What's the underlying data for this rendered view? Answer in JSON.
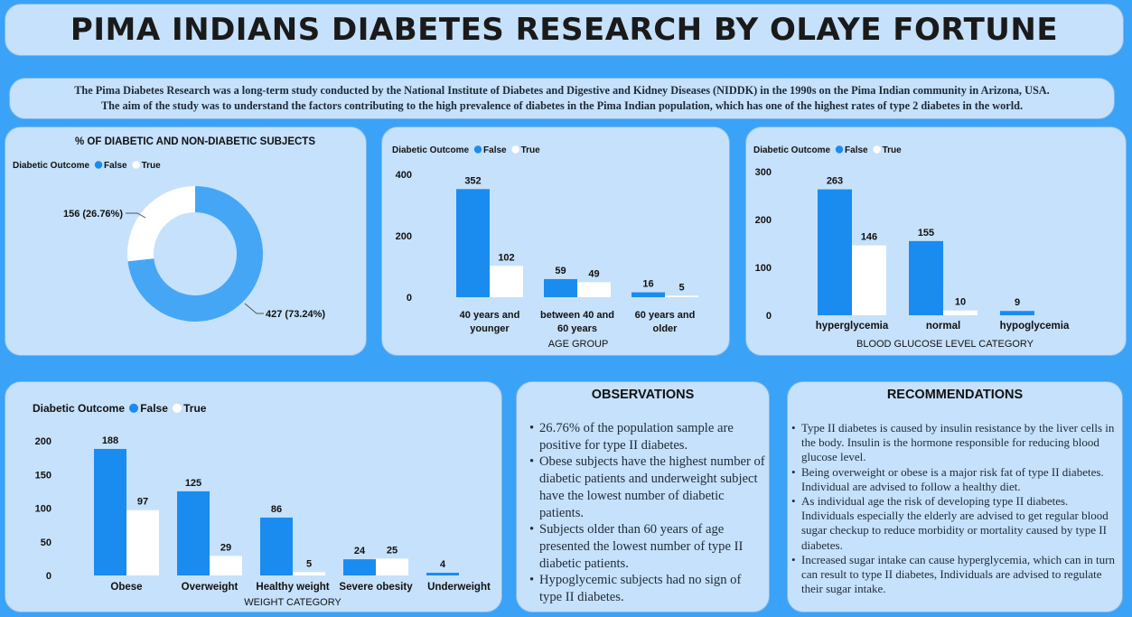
{
  "title": "PIMA INDIANS DIABETES RESEARCH BY OLAYE FORTUNE",
  "intro": [
    "The Pima Diabetes Research was a long-term study conducted by the National Institute of Diabetes and Digestive and Kidney Diseases (NIDDK) in the 1990s on the Pima Indian community in Arizona, USA.",
    "The aim of the study was to understand the factors contributing to the high prevalence of diabetes in the Pima Indian population, which has one of the highest rates of type 2 diabetes in the world."
  ],
  "colors": {
    "false": "#1a8cf0",
    "true": "#ffffff",
    "background": "#3aa2f7",
    "panel": "#c6e1fb"
  },
  "chart_data": [
    {
      "id": "donut",
      "type": "pie",
      "title": "% OF DIABETIC AND NON-DIABETIC SUBJECTS",
      "legend_title": "Diabetic Outcome",
      "legend_position": "top-left",
      "series": [
        {
          "name": "False",
          "value": 427,
          "label": "427 (73.24%)"
        },
        {
          "name": "True",
          "value": 156,
          "label": "156 (26.76%)"
        }
      ]
    },
    {
      "id": "age",
      "type": "bar",
      "title": "",
      "legend_title": "Diabetic Outcome",
      "legend_position": "top-left",
      "xlabel": "AGE GROUP",
      "ylabel": "",
      "categories": [
        [
          "40 years and",
          "younger"
        ],
        [
          "between 40 and",
          "60 years"
        ],
        [
          "60 years and",
          "older"
        ]
      ],
      "series": [
        {
          "name": "False",
          "values": [
            352,
            59,
            16
          ]
        },
        {
          "name": "True",
          "values": [
            102,
            49,
            5
          ]
        }
      ],
      "yticks": [
        0,
        200,
        400
      ],
      "ylim": [
        0,
        400
      ],
      "grid": false
    },
    {
      "id": "glucose",
      "type": "bar",
      "title": "",
      "legend_title": "Diabetic Outcome",
      "legend_position": "top-left",
      "xlabel": "BLOOD GLUCOSE LEVEL CATEGORY",
      "ylabel": "",
      "categories": [
        [
          "hyperglycemia"
        ],
        [
          "normal"
        ],
        [
          "hypoglycemia"
        ]
      ],
      "series": [
        {
          "name": "False",
          "values": [
            263,
            155,
            9
          ]
        },
        {
          "name": "True",
          "values": [
            146,
            10,
            null
          ]
        }
      ],
      "yticks": [
        0,
        100,
        200,
        300
      ],
      "ylim": [
        0,
        300
      ],
      "grid": false
    },
    {
      "id": "weight",
      "type": "bar",
      "title": "",
      "legend_title": "Diabetic Outcome",
      "legend_position": "top-left",
      "xlabel": "WEIGHT CATEGORY",
      "ylabel": "",
      "categories": [
        [
          "Obese"
        ],
        [
          "Overweight"
        ],
        [
          "Healthy weight"
        ],
        [
          "Severe obesity"
        ],
        [
          "Underweight"
        ]
      ],
      "series": [
        {
          "name": "False",
          "values": [
            188,
            125,
            86,
            24,
            4
          ]
        },
        {
          "name": "True",
          "values": [
            97,
            29,
            5,
            25,
            null
          ]
        }
      ],
      "yticks": [
        0,
        50,
        100,
        150,
        200
      ],
      "ylim": [
        0,
        200
      ],
      "grid": false
    }
  ],
  "observations": {
    "title": "OBSERVATIONS",
    "items": [
      "26.76% of the population sample are positive for type II diabetes.",
      "Obese subjects have the highest number of diabetic patients and underweight subject have the lowest number of diabetic patients.",
      "Subjects older than 60 years of age presented the lowest number of type II diabetic patients.",
      "Hypoglycemic subjects had no sign of type II diabetes."
    ]
  },
  "recommendations": {
    "title": "RECOMMENDATIONS",
    "items": [
      "Type II diabetes is caused by insulin resistance by the liver cells in the body. Insulin is the hormone responsible for reducing blood glucose level.",
      "Being overweight or obese is a major risk fat of type II diabetes. Individual are advised to follow a healthy diet.",
      "As individual age the risk of developing type II diabetes. Individuals especially the elderly are advised to get regular blood sugar checkup to reduce morbidity or mortality caused by type II diabetes.",
      "Increased sugar intake can cause hyperglycemia, which can in turn can result to type II diabetes, Individuals are advised to regulate their sugar intake."
    ]
  }
}
